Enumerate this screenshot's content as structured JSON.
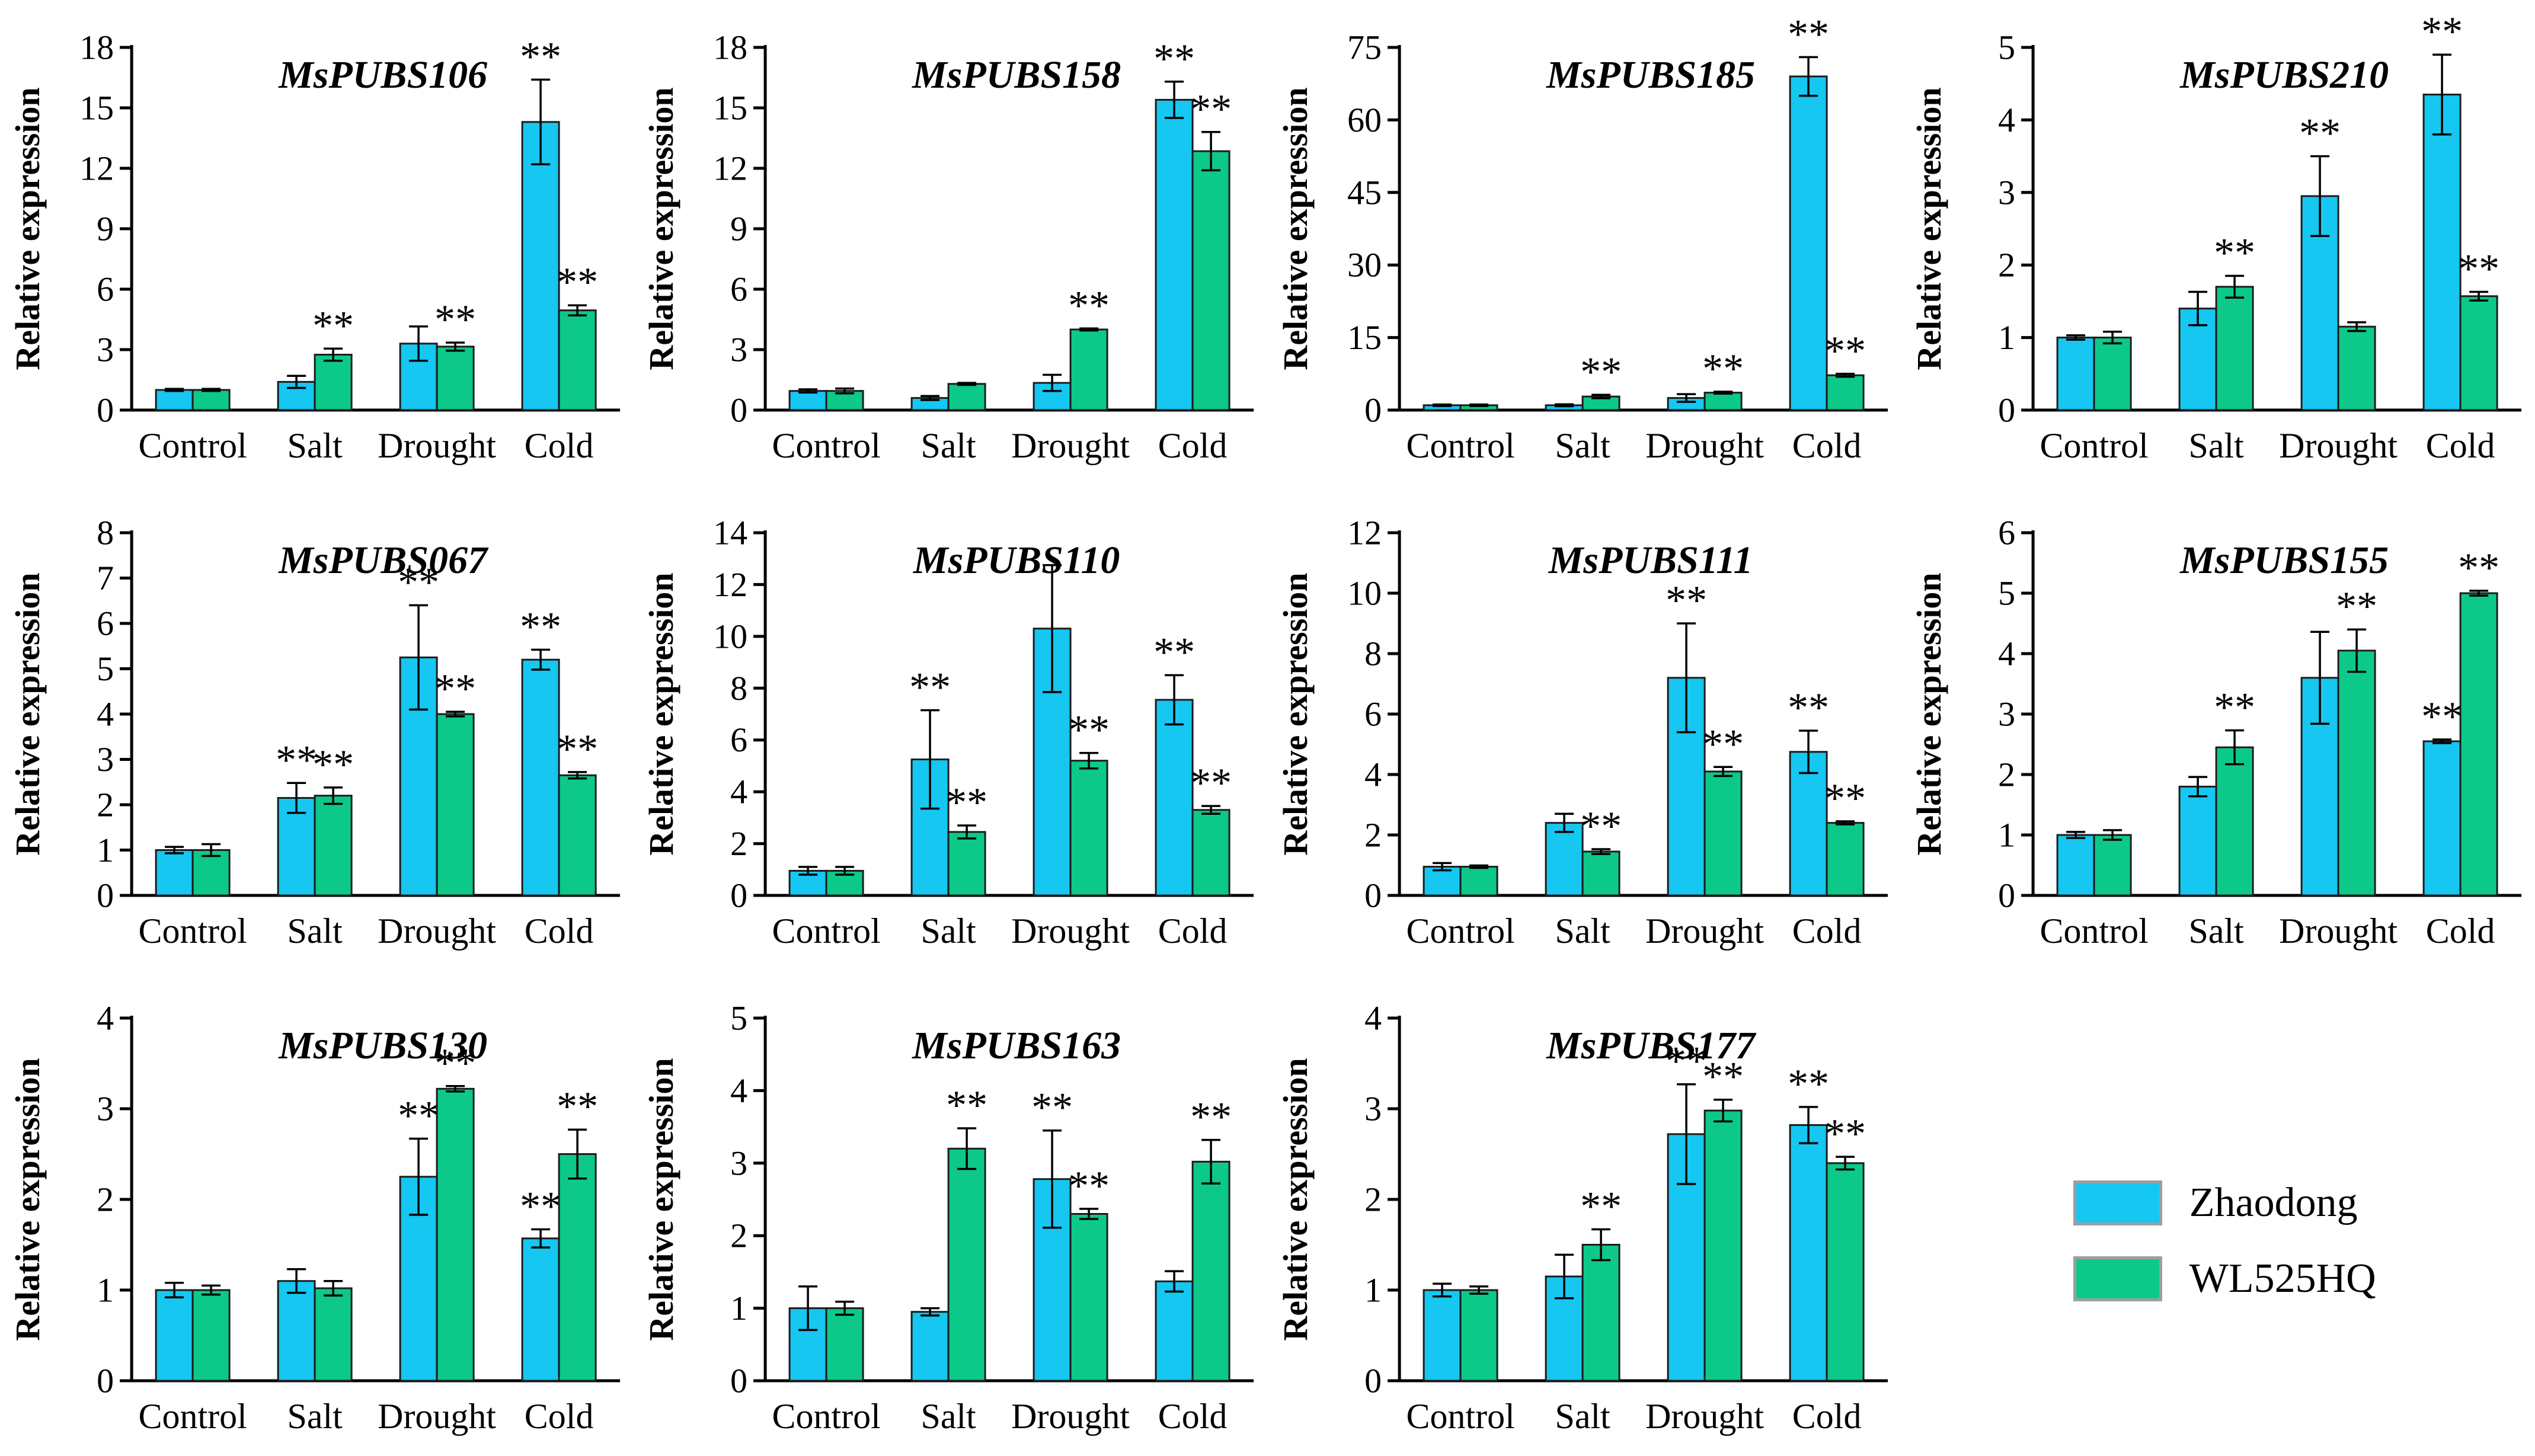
{
  "colors": {
    "zhaodong": "#15C7F1",
    "wl525hq": "#0CC98A",
    "bar_outline": "#1c1c1c",
    "axis": "#000000",
    "error_bar": "#000000",
    "stars": "#3d3d3d",
    "legend_swatch_border": "#9e9e9e"
  },
  "legend": {
    "position": "bottom-right-cell",
    "items": [
      {
        "label": "Zhaodong",
        "color_key": "zhaodong"
      },
      {
        "label": "WL525HQ",
        "color_key": "wl525hq"
      }
    ]
  },
  "significance_marker": "**",
  "chart_data": [
    {
      "type": "bar",
      "title": "MsPUBS106",
      "ylabel": "Relative expression",
      "xlabel": "",
      "categories": [
        "Control",
        "Salt",
        "Drought",
        "Cold"
      ],
      "ylim": [
        0,
        18
      ],
      "yticks": [
        0,
        3,
        6,
        9,
        12,
        15,
        18
      ],
      "grid": false,
      "series": [
        {
          "name": "Zhaodong",
          "color_key": "zhaodong",
          "values": [
            1.0,
            1.4,
            3.3,
            14.3
          ],
          "errors": [
            0.05,
            0.3,
            0.85,
            2.1
          ],
          "sig": [
            0,
            0,
            0,
            1
          ]
        },
        {
          "name": "WL525HQ",
          "color_key": "wl525hq",
          "values": [
            1.0,
            2.75,
            3.15,
            4.95
          ],
          "errors": [
            0.05,
            0.3,
            0.2,
            0.25
          ],
          "sig": [
            0,
            1,
            1,
            1
          ]
        }
      ]
    },
    {
      "type": "bar",
      "title": "MsPUBS158",
      "ylabel": "Relative expression",
      "xlabel": "",
      "categories": [
        "Control",
        "Salt",
        "Drought",
        "Cold"
      ],
      "ylim": [
        0,
        18
      ],
      "yticks": [
        0,
        3,
        6,
        9,
        12,
        15,
        18
      ],
      "grid": false,
      "series": [
        {
          "name": "Zhaodong",
          "color_key": "zhaodong",
          "values": [
            0.95,
            0.6,
            1.35,
            15.4
          ],
          "errors": [
            0.08,
            0.1,
            0.4,
            0.9
          ],
          "sig": [
            0,
            0,
            0,
            1
          ]
        },
        {
          "name": "WL525HQ",
          "color_key": "wl525hq",
          "values": [
            0.95,
            1.3,
            4.0,
            12.85
          ],
          "errors": [
            0.12,
            0.05,
            0.05,
            0.95
          ],
          "sig": [
            0,
            0,
            1,
            1
          ]
        }
      ]
    },
    {
      "type": "bar",
      "title": "MsPUBS185",
      "ylabel": "Relative expression",
      "xlabel": "",
      "categories": [
        "Control",
        "Salt",
        "Drought",
        "Cold"
      ],
      "ylim": [
        0,
        75
      ],
      "yticks": [
        0,
        15,
        30,
        45,
        60,
        75
      ],
      "grid": false,
      "series": [
        {
          "name": "Zhaodong",
          "color_key": "zhaodong",
          "values": [
            1.0,
            1.0,
            2.5,
            69.0
          ],
          "errors": [
            0.15,
            0.2,
            0.8,
            4.0
          ],
          "sig": [
            0,
            0,
            0,
            1
          ]
        },
        {
          "name": "WL525HQ",
          "color_key": "wl525hq",
          "values": [
            1.0,
            2.8,
            3.6,
            7.2
          ],
          "errors": [
            0.15,
            0.35,
            0.2,
            0.3
          ],
          "sig": [
            0,
            1,
            1,
            1
          ]
        }
      ]
    },
    {
      "type": "bar",
      "title": "MsPUBS210",
      "ylabel": "Relative expression",
      "xlabel": "",
      "categories": [
        "Control",
        "Salt",
        "Drought",
        "Cold"
      ],
      "ylim": [
        0,
        5
      ],
      "yticks": [
        0,
        1,
        2,
        3,
        4,
        5
      ],
      "grid": false,
      "series": [
        {
          "name": "Zhaodong",
          "color_key": "zhaodong",
          "values": [
            1.0,
            1.4,
            2.95,
            4.35
          ],
          "errors": [
            0.03,
            0.23,
            0.55,
            0.55
          ],
          "sig": [
            0,
            0,
            1,
            1
          ]
        },
        {
          "name": "WL525HQ",
          "color_key": "wl525hq",
          "values": [
            1.0,
            1.7,
            1.15,
            1.57
          ],
          "errors": [
            0.08,
            0.15,
            0.06,
            0.06
          ],
          "sig": [
            0,
            1,
            0,
            1
          ]
        }
      ]
    },
    {
      "type": "bar",
      "title": "MsPUBS067",
      "ylabel": "Relative expression",
      "xlabel": "",
      "categories": [
        "Control",
        "Salt",
        "Drought",
        "Cold"
      ],
      "ylim": [
        0,
        8
      ],
      "yticks": [
        0,
        1,
        2,
        3,
        4,
        5,
        6,
        7,
        8
      ],
      "grid": false,
      "series": [
        {
          "name": "Zhaodong",
          "color_key": "zhaodong",
          "values": [
            1.0,
            2.15,
            5.25,
            5.2
          ],
          "errors": [
            0.07,
            0.33,
            1.15,
            0.22
          ],
          "sig": [
            0,
            1,
            1,
            1
          ]
        },
        {
          "name": "WL525HQ",
          "color_key": "wl525hq",
          "values": [
            1.0,
            2.2,
            4.0,
            2.65
          ],
          "errors": [
            0.13,
            0.18,
            0.05,
            0.07
          ],
          "sig": [
            0,
            1,
            1,
            1
          ]
        }
      ]
    },
    {
      "type": "bar",
      "title": "MsPUBS110",
      "ylabel": "Relative expression",
      "xlabel": "",
      "categories": [
        "Control",
        "Salt",
        "Drought",
        "Cold"
      ],
      "ylim": [
        0,
        14
      ],
      "yticks": [
        0,
        2,
        4,
        6,
        8,
        10,
        12,
        14
      ],
      "grid": false,
      "series": [
        {
          "name": "Zhaodong",
          "color_key": "zhaodong",
          "values": [
            0.95,
            5.25,
            10.3,
            7.55
          ],
          "errors": [
            0.15,
            1.9,
            2.45,
            0.95
          ],
          "sig": [
            0,
            1,
            0,
            1
          ]
        },
        {
          "name": "WL525HQ",
          "color_key": "wl525hq",
          "values": [
            0.95,
            2.45,
            5.2,
            3.3
          ],
          "errors": [
            0.15,
            0.25,
            0.3,
            0.15
          ],
          "sig": [
            0,
            1,
            1,
            1
          ]
        }
      ]
    },
    {
      "type": "bar",
      "title": "MsPUBS111",
      "ylabel": "Relative expression",
      "xlabel": "",
      "categories": [
        "Control",
        "Salt",
        "Drought",
        "Cold"
      ],
      "ylim": [
        0,
        12
      ],
      "yticks": [
        0,
        2,
        4,
        6,
        8,
        10,
        12
      ],
      "grid": false,
      "series": [
        {
          "name": "Zhaodong",
          "color_key": "zhaodong",
          "values": [
            0.95,
            2.4,
            7.2,
            4.75
          ],
          "errors": [
            0.12,
            0.3,
            1.8,
            0.7
          ],
          "sig": [
            0,
            0,
            1,
            1
          ]
        },
        {
          "name": "WL525HQ",
          "color_key": "wl525hq",
          "values": [
            0.95,
            1.45,
            4.1,
            2.4
          ],
          "errors": [
            0.04,
            0.08,
            0.15,
            0.05
          ],
          "sig": [
            0,
            1,
            1,
            1
          ]
        }
      ]
    },
    {
      "type": "bar",
      "title": "MsPUBS155",
      "ylabel": "Relative expression",
      "xlabel": "",
      "categories": [
        "Control",
        "Salt",
        "Drought",
        "Cold"
      ],
      "ylim": [
        0,
        6
      ],
      "yticks": [
        0,
        1,
        2,
        3,
        4,
        5,
        6
      ],
      "grid": false,
      "series": [
        {
          "name": "Zhaodong",
          "color_key": "zhaodong",
          "values": [
            1.0,
            1.8,
            3.6,
            2.55
          ],
          "errors": [
            0.05,
            0.16,
            0.76,
            0.03
          ],
          "sig": [
            0,
            0,
            0,
            1
          ]
        },
        {
          "name": "WL525HQ",
          "color_key": "wl525hq",
          "values": [
            1.0,
            2.45,
            4.05,
            5.0
          ],
          "errors": [
            0.08,
            0.28,
            0.35,
            0.04
          ],
          "sig": [
            0,
            1,
            1,
            1
          ]
        }
      ]
    },
    {
      "type": "bar",
      "title": "MsPUBS130",
      "ylabel": "Relative expression",
      "xlabel": "",
      "categories": [
        "Control",
        "Salt",
        "Drought",
        "Cold"
      ],
      "ylim": [
        0,
        4
      ],
      "yticks": [
        0,
        1,
        2,
        3,
        4
      ],
      "grid": false,
      "series": [
        {
          "name": "Zhaodong",
          "color_key": "zhaodong",
          "values": [
            1.0,
            1.1,
            2.25,
            1.57
          ],
          "errors": [
            0.08,
            0.13,
            0.42,
            0.1
          ],
          "sig": [
            0,
            0,
            1,
            1
          ]
        },
        {
          "name": "WL525HQ",
          "color_key": "wl525hq",
          "values": [
            1.0,
            1.02,
            3.22,
            2.5
          ],
          "errors": [
            0.05,
            0.08,
            0.03,
            0.27
          ],
          "sig": [
            0,
            0,
            1,
            1
          ]
        }
      ]
    },
    {
      "type": "bar",
      "title": "MsPUBS163",
      "ylabel": "Relative expression",
      "xlabel": "",
      "categories": [
        "Control",
        "Salt",
        "Drought",
        "Cold"
      ],
      "ylim": [
        0,
        5
      ],
      "yticks": [
        0,
        1,
        2,
        3,
        4,
        5
      ],
      "grid": false,
      "series": [
        {
          "name": "Zhaodong",
          "color_key": "zhaodong",
          "values": [
            1.0,
            0.95,
            2.78,
            1.37
          ],
          "errors": [
            0.3,
            0.05,
            0.67,
            0.14
          ],
          "sig": [
            0,
            0,
            1,
            0
          ]
        },
        {
          "name": "WL525HQ",
          "color_key": "wl525hq",
          "values": [
            1.0,
            3.2,
            2.3,
            3.02
          ],
          "errors": [
            0.09,
            0.28,
            0.07,
            0.3
          ],
          "sig": [
            0,
            1,
            1,
            1
          ]
        }
      ]
    },
    {
      "type": "bar",
      "title": "MsPUBS177",
      "ylabel": "Relative expression",
      "xlabel": "",
      "categories": [
        "Control",
        "Salt",
        "Drought",
        "Cold"
      ],
      "ylim": [
        0,
        4
      ],
      "yticks": [
        0,
        1,
        2,
        3,
        4
      ],
      "grid": false,
      "series": [
        {
          "name": "Zhaodong",
          "color_key": "zhaodong",
          "values": [
            1.0,
            1.15,
            2.72,
            2.82
          ],
          "errors": [
            0.07,
            0.24,
            0.55,
            0.2
          ],
          "sig": [
            0,
            0,
            1,
            1
          ]
        },
        {
          "name": "WL525HQ",
          "color_key": "wl525hq",
          "values": [
            1.0,
            1.5,
            2.98,
            2.4
          ],
          "errors": [
            0.04,
            0.17,
            0.12,
            0.07
          ],
          "sig": [
            0,
            1,
            1,
            1
          ]
        }
      ]
    }
  ]
}
